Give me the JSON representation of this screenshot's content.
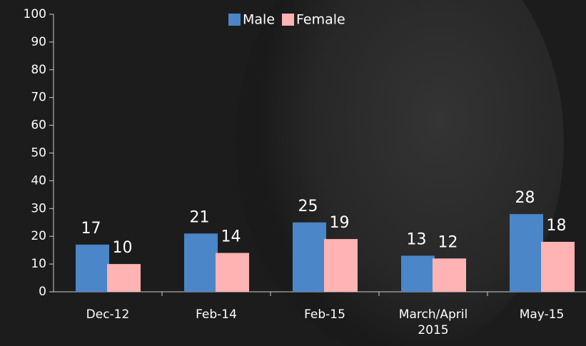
{
  "chart_data": {
    "type": "bar",
    "categories": [
      "Dec-12",
      "Feb-14",
      "Feb-15",
      "March/April 2015",
      "May-15"
    ],
    "series": [
      {
        "name": "Male",
        "color": "#4a86c8",
        "values": [
          17,
          21,
          25,
          13,
          28
        ]
      },
      {
        "name": "Female",
        "color": "#ffb3b3",
        "values": [
          10,
          14,
          19,
          12,
          18
        ]
      }
    ],
    "ylim": [
      0,
      100
    ],
    "yticks": [
      0,
      10,
      20,
      30,
      40,
      50,
      60,
      70,
      80,
      90,
      100
    ],
    "legend": "top"
  }
}
